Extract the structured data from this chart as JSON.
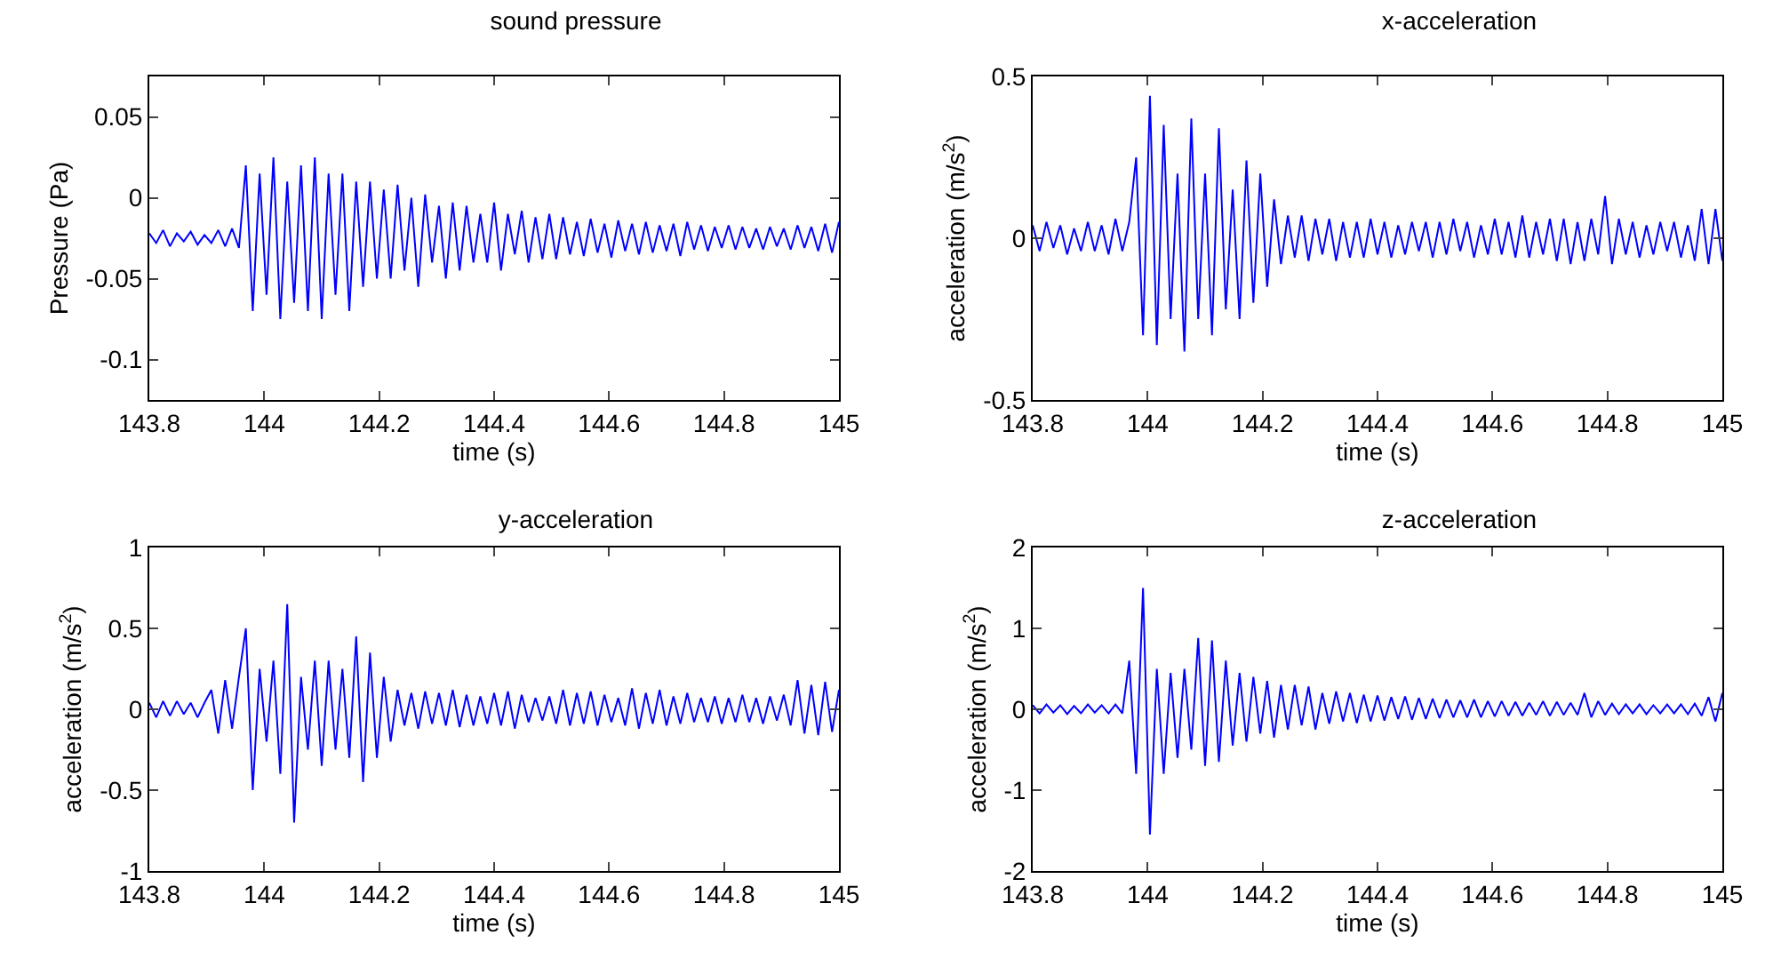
{
  "chart_data": [
    {
      "type": "line",
      "title": "sound pressure",
      "xlabel": "time (s)",
      "ylabel": "Pressure (Pa)",
      "grid": false,
      "marker": "none",
      "line_style": "solid",
      "xlim": [
        143.8,
        145
      ],
      "xticks": [
        143.8,
        144,
        144.2,
        144.4,
        144.6,
        144.8,
        145
      ],
      "ylim": [
        -0.125,
        0.075
      ],
      "yticks": [
        -0.1,
        -0.05,
        0,
        0.05
      ],
      "x": [
        143.8,
        143.812,
        143.824,
        143.836,
        143.848,
        143.86,
        143.872,
        143.884,
        143.896,
        143.908,
        143.92,
        143.932,
        143.944,
        143.956,
        143.968,
        143.98,
        143.992,
        144.004,
        144.016,
        144.028,
        144.04,
        144.052,
        144.064,
        144.076,
        144.088,
        144.1,
        144.112,
        144.124,
        144.136,
        144.148,
        144.16,
        144.172,
        144.184,
        144.196,
        144.208,
        144.22,
        144.232,
        144.244,
        144.256,
        144.268,
        144.28,
        144.292,
        144.304,
        144.316,
        144.328,
        144.34,
        144.352,
        144.364,
        144.376,
        144.388,
        144.4,
        144.412,
        144.424,
        144.436,
        144.448,
        144.46,
        144.472,
        144.484,
        144.496,
        144.508,
        144.52,
        144.532,
        144.544,
        144.556,
        144.568,
        144.58,
        144.592,
        144.604,
        144.616,
        144.628,
        144.64,
        144.652,
        144.664,
        144.676,
        144.688,
        144.7,
        144.712,
        144.724,
        144.736,
        144.748,
        144.76,
        144.772,
        144.784,
        144.796,
        144.808,
        144.82,
        144.832,
        144.844,
        144.856,
        144.868,
        144.88,
        144.892,
        144.904,
        144.916,
        144.928,
        144.94,
        144.952,
        144.964,
        144.976,
        144.988,
        145.0
      ],
      "series": [
        {
          "color": "#0000ff",
          "values": [
            -0.022,
            -0.028,
            -0.02,
            -0.03,
            -0.022,
            -0.027,
            -0.021,
            -0.029,
            -0.023,
            -0.028,
            -0.02,
            -0.03,
            -0.019,
            -0.031,
            0.02,
            -0.07,
            0.015,
            -0.06,
            0.025,
            -0.075,
            0.01,
            -0.065,
            0.02,
            -0.07,
            0.025,
            -0.075,
            0.015,
            -0.06,
            0.015,
            -0.07,
            0.01,
            -0.055,
            0.01,
            -0.05,
            0.005,
            -0.05,
            0.008,
            -0.045,
            0,
            -0.055,
            0.002,
            -0.04,
            -0.005,
            -0.05,
            -0.003,
            -0.045,
            -0.005,
            -0.04,
            -0.01,
            -0.04,
            -0.003,
            -0.045,
            -0.01,
            -0.035,
            -0.008,
            -0.04,
            -0.012,
            -0.038,
            -0.01,
            -0.038,
            -0.012,
            -0.035,
            -0.015,
            -0.036,
            -0.013,
            -0.034,
            -0.016,
            -0.037,
            -0.014,
            -0.033,
            -0.016,
            -0.035,
            -0.015,
            -0.034,
            -0.017,
            -0.033,
            -0.016,
            -0.036,
            -0.015,
            -0.032,
            -0.017,
            -0.033,
            -0.018,
            -0.031,
            -0.017,
            -0.032,
            -0.018,
            -0.031,
            -0.019,
            -0.032,
            -0.018,
            -0.03,
            -0.019,
            -0.032,
            -0.017,
            -0.031,
            -0.018,
            -0.033,
            -0.016,
            -0.034,
            -0.015
          ]
        }
      ]
    },
    {
      "type": "line",
      "title": "x-acceleration",
      "xlabel": "time (s)",
      "ylabel": "acceleration (m/s$^{2}$)",
      "grid": false,
      "marker": "none",
      "line_style": "solid",
      "xlim": [
        143.8,
        145
      ],
      "xticks": [
        143.8,
        144,
        144.2,
        144.4,
        144.6,
        144.8,
        145
      ],
      "ylim": [
        -0.5,
        0.5
      ],
      "yticks": [
        -0.5,
        0,
        0.5
      ],
      "x": [
        143.8,
        143.812,
        143.824,
        143.836,
        143.848,
        143.86,
        143.872,
        143.884,
        143.896,
        143.908,
        143.92,
        143.932,
        143.944,
        143.956,
        143.968,
        143.98,
        143.992,
        144.004,
        144.016,
        144.028,
        144.04,
        144.052,
        144.064,
        144.076,
        144.088,
        144.1,
        144.112,
        144.124,
        144.136,
        144.148,
        144.16,
        144.172,
        144.184,
        144.196,
        144.208,
        144.22,
        144.232,
        144.244,
        144.256,
        144.268,
        144.28,
        144.292,
        144.304,
        144.316,
        144.328,
        144.34,
        144.352,
        144.364,
        144.376,
        144.388,
        144.4,
        144.412,
        144.424,
        144.436,
        144.448,
        144.46,
        144.472,
        144.484,
        144.496,
        144.508,
        144.52,
        144.532,
        144.544,
        144.556,
        144.568,
        144.58,
        144.592,
        144.604,
        144.616,
        144.628,
        144.64,
        144.652,
        144.664,
        144.676,
        144.688,
        144.7,
        144.712,
        144.724,
        144.736,
        144.748,
        144.76,
        144.772,
        144.784,
        144.796,
        144.808,
        144.82,
        144.832,
        144.844,
        144.856,
        144.868,
        144.88,
        144.892,
        144.904,
        144.916,
        144.928,
        144.94,
        144.952,
        144.964,
        144.976,
        144.988,
        145.0
      ],
      "series": [
        {
          "color": "#0000ff",
          "values": [
            0.04,
            -0.04,
            0.05,
            -0.03,
            0.04,
            -0.05,
            0.03,
            -0.04,
            0.05,
            -0.04,
            0.04,
            -0.05,
            0.06,
            -0.04,
            0.05,
            0.25,
            -0.3,
            0.44,
            -0.33,
            0.35,
            -0.25,
            0.2,
            -0.35,
            0.37,
            -0.25,
            0.2,
            -0.3,
            0.34,
            -0.22,
            0.15,
            -0.25,
            0.24,
            -0.2,
            0.2,
            -0.15,
            0.12,
            -0.08,
            0.07,
            -0.06,
            0.07,
            -0.07,
            0.06,
            -0.05,
            0.06,
            -0.07,
            0.05,
            -0.06,
            0.05,
            -0.06,
            0.06,
            -0.05,
            0.05,
            -0.06,
            0.04,
            -0.05,
            0.05,
            -0.04,
            0.05,
            -0.06,
            0.05,
            -0.05,
            0.06,
            -0.04,
            0.05,
            -0.06,
            0.04,
            -0.05,
            0.06,
            -0.05,
            0.05,
            -0.06,
            0.07,
            -0.06,
            0.05,
            -0.05,
            0.06,
            -0.07,
            0.06,
            -0.08,
            0.05,
            -0.07,
            0.06,
            -0.05,
            0.13,
            -0.08,
            0.06,
            -0.05,
            0.05,
            -0.06,
            0.04,
            -0.05,
            0.05,
            -0.04,
            0.05,
            -0.06,
            0.04,
            -0.07,
            0.09,
            -0.08,
            0.09,
            -0.07
          ]
        }
      ]
    },
    {
      "type": "line",
      "title": "y-acceleration",
      "xlabel": "time (s)",
      "ylabel": "acceleration (m/s$^{2}$)",
      "grid": false,
      "marker": "none",
      "line_style": "solid",
      "xlim": [
        143.8,
        145
      ],
      "xticks": [
        143.8,
        144,
        144.2,
        144.4,
        144.6,
        144.8,
        145
      ],
      "ylim": [
        -1,
        1
      ],
      "yticks": [
        -1,
        -0.5,
        0,
        0.5,
        1
      ],
      "x": [
        143.8,
        143.812,
        143.824,
        143.836,
        143.848,
        143.86,
        143.872,
        143.884,
        143.896,
        143.908,
        143.92,
        143.932,
        143.944,
        143.956,
        143.968,
        143.98,
        143.992,
        144.004,
        144.016,
        144.028,
        144.04,
        144.052,
        144.064,
        144.076,
        144.088,
        144.1,
        144.112,
        144.124,
        144.136,
        144.148,
        144.16,
        144.172,
        144.184,
        144.196,
        144.208,
        144.22,
        144.232,
        144.244,
        144.256,
        144.268,
        144.28,
        144.292,
        144.304,
        144.316,
        144.328,
        144.34,
        144.352,
        144.364,
        144.376,
        144.388,
        144.4,
        144.412,
        144.424,
        144.436,
        144.448,
        144.46,
        144.472,
        144.484,
        144.496,
        144.508,
        144.52,
        144.532,
        144.544,
        144.556,
        144.568,
        144.58,
        144.592,
        144.604,
        144.616,
        144.628,
        144.64,
        144.652,
        144.664,
        144.676,
        144.688,
        144.7,
        144.712,
        144.724,
        144.736,
        144.748,
        144.76,
        144.772,
        144.784,
        144.796,
        144.808,
        144.82,
        144.832,
        144.844,
        144.856,
        144.868,
        144.88,
        144.892,
        144.904,
        144.916,
        144.928,
        144.94,
        144.952,
        144.964,
        144.976,
        144.988,
        145.0
      ],
      "series": [
        {
          "color": "#0000ff",
          "values": [
            0.04,
            -0.05,
            0.05,
            -0.04,
            0.05,
            -0.03,
            0.04,
            -0.05,
            0.04,
            0.12,
            -0.15,
            0.18,
            -0.12,
            0.2,
            0.5,
            -0.5,
            0.25,
            -0.2,
            0.3,
            -0.4,
            0.65,
            -0.7,
            0.2,
            -0.25,
            0.3,
            -0.35,
            0.3,
            -0.25,
            0.25,
            -0.3,
            0.45,
            -0.45,
            0.35,
            -0.3,
            0.2,
            -0.2,
            0.12,
            -0.1,
            0.1,
            -0.12,
            0.11,
            -0.09,
            0.1,
            -0.1,
            0.12,
            -0.11,
            0.09,
            -0.1,
            0.08,
            -0.09,
            0.1,
            -0.1,
            0.11,
            -0.12,
            0.09,
            -0.08,
            0.07,
            -0.07,
            0.08,
            -0.09,
            0.12,
            -0.1,
            0.1,
            -0.09,
            0.11,
            -0.1,
            0.09,
            -0.08,
            0.07,
            -0.1,
            0.13,
            -0.12,
            0.1,
            -0.09,
            0.12,
            -0.1,
            0.08,
            -0.09,
            0.1,
            -0.08,
            0.07,
            -0.08,
            0.08,
            -0.09,
            0.07,
            -0.08,
            0.09,
            -0.08,
            0.07,
            -0.09,
            0.08,
            -0.07,
            0.09,
            -0.1,
            0.18,
            -0.15,
            0.15,
            -0.16,
            0.17,
            -0.14,
            0.12
          ]
        }
      ]
    },
    {
      "type": "line",
      "title": "z-acceleration",
      "xlabel": "time (s)",
      "ylabel": "acceleration (m/s$^{2}$)",
      "grid": false,
      "marker": "none",
      "line_style": "solid",
      "xlim": [
        143.8,
        145
      ],
      "xticks": [
        143.8,
        144,
        144.2,
        144.4,
        144.6,
        144.8,
        145
      ],
      "ylim": [
        -2,
        2
      ],
      "yticks": [
        -2,
        -1,
        0,
        1,
        2
      ],
      "x": [
        143.8,
        143.812,
        143.824,
        143.836,
        143.848,
        143.86,
        143.872,
        143.884,
        143.896,
        143.908,
        143.92,
        143.932,
        143.944,
        143.956,
        143.968,
        143.98,
        143.992,
        144.004,
        144.016,
        144.028,
        144.04,
        144.052,
        144.064,
        144.076,
        144.088,
        144.1,
        144.112,
        144.124,
        144.136,
        144.148,
        144.16,
        144.172,
        144.184,
        144.196,
        144.208,
        144.22,
        144.232,
        144.244,
        144.256,
        144.268,
        144.28,
        144.292,
        144.304,
        144.316,
        144.328,
        144.34,
        144.352,
        144.364,
        144.376,
        144.388,
        144.4,
        144.412,
        144.424,
        144.436,
        144.448,
        144.46,
        144.472,
        144.484,
        144.496,
        144.508,
        144.52,
        144.532,
        144.544,
        144.556,
        144.568,
        144.58,
        144.592,
        144.604,
        144.616,
        144.628,
        144.64,
        144.652,
        144.664,
        144.676,
        144.688,
        144.7,
        144.712,
        144.724,
        144.736,
        144.748,
        144.76,
        144.772,
        144.784,
        144.796,
        144.808,
        144.82,
        144.832,
        144.844,
        144.856,
        144.868,
        144.88,
        144.892,
        144.904,
        144.916,
        144.928,
        144.94,
        144.952,
        144.964,
        144.976,
        144.988,
        145.0
      ],
      "series": [
        {
          "color": "#0000ff",
          "values": [
            0.05,
            -0.05,
            0.06,
            -0.04,
            0.05,
            -0.06,
            0.04,
            -0.05,
            0.06,
            -0.04,
            0.05,
            -0.05,
            0.06,
            -0.05,
            0.6,
            -0.8,
            1.5,
            -1.55,
            0.5,
            -0.8,
            0.45,
            -0.6,
            0.5,
            -0.5,
            0.88,
            -0.7,
            0.85,
            -0.65,
            0.6,
            -0.45,
            0.45,
            -0.4,
            0.4,
            -0.3,
            0.35,
            -0.35,
            0.3,
            -0.25,
            0.3,
            -0.2,
            0.28,
            -0.25,
            0.2,
            -0.18,
            0.22,
            -0.15,
            0.2,
            -0.17,
            0.18,
            -0.15,
            0.17,
            -0.14,
            0.15,
            -0.12,
            0.16,
            -0.13,
            0.14,
            -0.12,
            0.13,
            -0.11,
            0.12,
            -0.1,
            0.11,
            -0.1,
            0.12,
            -0.1,
            0.1,
            -0.09,
            0.1,
            -0.08,
            0.09,
            -0.08,
            0.08,
            -0.07,
            0.1,
            -0.08,
            0.09,
            -0.07,
            0.08,
            -0.07,
            0.2,
            -0.1,
            0.1,
            -0.07,
            0.07,
            -0.06,
            0.06,
            -0.05,
            0.06,
            -0.06,
            0.05,
            -0.05,
            0.06,
            -0.05,
            0.06,
            -0.06,
            0.07,
            -0.08,
            0.15,
            -0.15,
            0.2
          ]
        }
      ]
    }
  ]
}
